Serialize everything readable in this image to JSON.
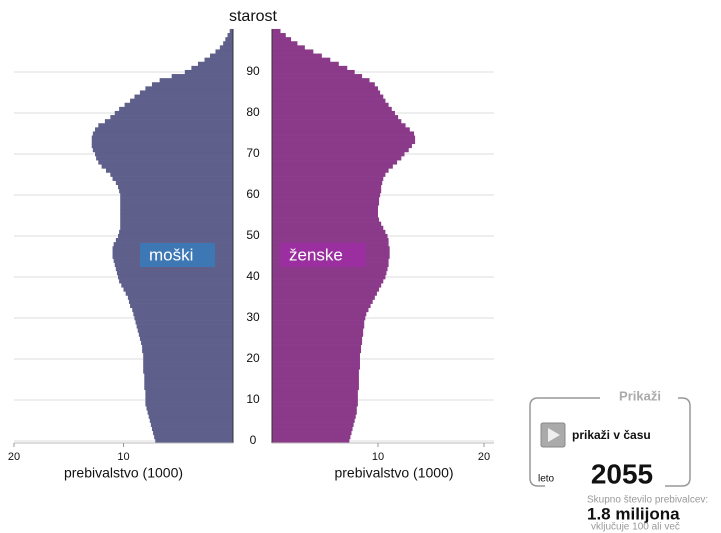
{
  "chart_data": {
    "type": "pyramid",
    "y_label": "starost",
    "categories": [
      0,
      null,
      null,
      null,
      null,
      null,
      null,
      null,
      null,
      null,
      10,
      null,
      null,
      null,
      null,
      null,
      null,
      null,
      null,
      null,
      20,
      null,
      null,
      null,
      null,
      null,
      null,
      null,
      null,
      null,
      30,
      null,
      null,
      null,
      null,
      null,
      null,
      null,
      null,
      null,
      40,
      null,
      null,
      null,
      null,
      null,
      null,
      null,
      null,
      null,
      50,
      null,
      null,
      null,
      null,
      null,
      null,
      null,
      null,
      null,
      60,
      null,
      null,
      null,
      null,
      null,
      null,
      null,
      null,
      null,
      70,
      null,
      null,
      null,
      null,
      null,
      null,
      null,
      null,
      null,
      80,
      null,
      null,
      null,
      null,
      null,
      null,
      null,
      null,
      null,
      90,
      null,
      null,
      null,
      null,
      null,
      null,
      null,
      null,
      null,
      null
    ],
    "grid": true,
    "series": [
      {
        "name": "moški",
        "color": "#5e5f8a",
        "legend_color": "#3d78b5",
        "side": "left",
        "x_label": "prebivalstvo (1000)",
        "xlim": [
          0,
          20
        ],
        "xticks": [
          20,
          10
        ],
        "values": [
          7.1,
          7.2,
          7.3,
          7.4,
          7.5,
          7.6,
          7.7,
          7.8,
          7.9,
          8.0,
          8.0,
          8.0,
          8.0,
          8.1,
          8.1,
          8.1,
          8.1,
          8.2,
          8.2,
          8.2,
          8.2,
          8.2,
          8.3,
          8.3,
          8.4,
          8.5,
          8.6,
          8.7,
          8.8,
          8.9,
          9.0,
          9.1,
          9.2,
          9.4,
          9.5,
          9.6,
          9.8,
          10.0,
          10.2,
          10.4,
          10.5,
          10.6,
          10.7,
          10.8,
          10.9,
          11.0,
          11.0,
          11.0,
          10.9,
          10.7,
          10.5,
          10.4,
          10.3,
          10.3,
          10.3,
          10.3,
          10.3,
          10.3,
          10.3,
          10.3,
          10.3,
          10.4,
          10.5,
          10.7,
          11.0,
          11.2,
          11.6,
          12.0,
          12.3,
          12.5,
          12.6,
          12.8,
          12.9,
          12.9,
          12.9,
          12.8,
          12.6,
          12.3,
          11.7,
          11.2,
          10.8,
          10.4,
          9.9,
          9.4,
          9.0,
          8.5,
          8.0,
          7.4,
          6.7,
          5.6,
          4.4,
          3.8,
          3.2,
          2.6,
          2.1,
          1.6,
          1.2,
          0.9,
          0.7,
          0.5,
          0.3
        ]
      },
      {
        "name": "ženske",
        "color": "#8b3a8a",
        "legend_color": "#9b2fa0",
        "side": "right",
        "x_label": "prebivalstvo (1000)",
        "xlim": [
          0,
          20
        ],
        "xticks": [
          10,
          20
        ],
        "values": [
          7.3,
          7.4,
          7.5,
          7.6,
          7.7,
          7.8,
          7.9,
          8.0,
          8.0,
          8.1,
          8.1,
          8.1,
          8.1,
          8.2,
          8.2,
          8.2,
          8.2,
          8.2,
          8.3,
          8.3,
          8.3,
          8.3,
          8.4,
          8.4,
          8.5,
          8.5,
          8.6,
          8.6,
          8.7,
          8.7,
          8.8,
          8.9,
          9.1,
          9.3,
          9.5,
          9.7,
          9.9,
          10.1,
          10.3,
          10.5,
          10.7,
          10.8,
          10.9,
          11.0,
          11.0,
          11.1,
          11.1,
          11.1,
          11.0,
          11.0,
          10.9,
          10.7,
          10.5,
          10.3,
          10.1,
          10.0,
          10.0,
          10.0,
          10.1,
          10.1,
          10.2,
          10.3,
          10.3,
          10.4,
          10.5,
          10.7,
          11.0,
          11.4,
          11.8,
          12.2,
          12.5,
          12.9,
          13.2,
          13.5,
          13.5,
          13.4,
          13.0,
          12.6,
          12.2,
          11.9,
          11.6,
          11.3,
          11.0,
          10.7,
          10.5,
          10.2,
          10.0,
          9.7,
          9.2,
          8.5,
          7.8,
          7.1,
          6.3,
          5.5,
          4.7,
          3.9,
          3.1,
          2.4,
          1.8,
          1.3,
          0.8
        ]
      }
    ]
  },
  "controls": {
    "title": "Prikaži",
    "play": "prikaži v času",
    "year_label": "leto",
    "year": "2055",
    "total_label": "Skupno število prebivalcev:",
    "total": "1.8 milijona",
    "note": "vključuje 100 ali več"
  }
}
